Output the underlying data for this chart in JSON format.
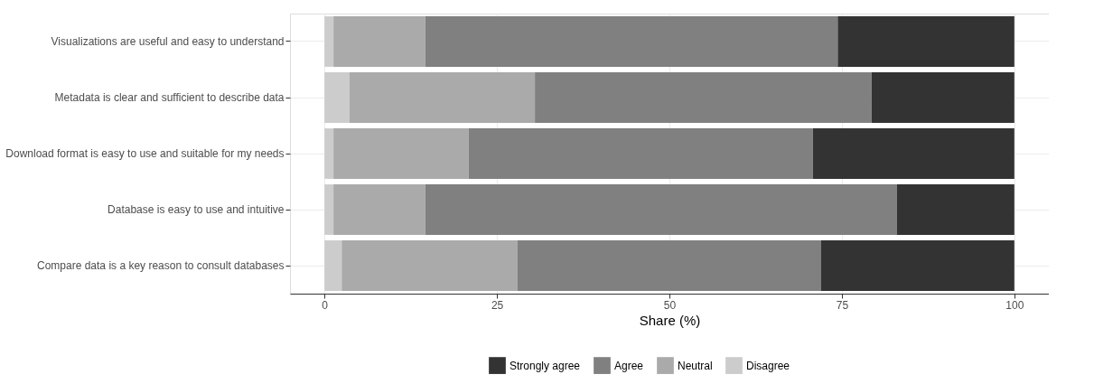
{
  "chart_data": {
    "type": "bar",
    "orientation": "horizontal",
    "stacked": true,
    "categories": [
      "Visualizations are  useful and easy to understand",
      "Metadata is clear and sufficient to describe data",
      "Download format is easy to use and suitable for my needs",
      "Database is easy to use and intuitive",
      "Compare data is a key reason to consult databases"
    ],
    "series": [
      {
        "name": "Disagree",
        "color": "#cccccc",
        "values": [
          1.3,
          3.6,
          1.3,
          1.3,
          2.5
        ]
      },
      {
        "name": "Neutral",
        "color": "#aaaaaa",
        "values": [
          13.3,
          26.9,
          19.6,
          13.3,
          25.5
        ]
      },
      {
        "name": "Agree",
        "color": "#808080",
        "values": [
          59.8,
          48.8,
          49.9,
          68.4,
          44.0
        ]
      },
      {
        "name": "Strongly agree",
        "color": "#333333",
        "values": [
          25.6,
          20.7,
          29.2,
          17.0,
          28.0
        ]
      }
    ],
    "xlabel": "Share (%)",
    "xlim": [
      -5,
      105
    ],
    "xticks": [
      0,
      25,
      50,
      75,
      100
    ],
    "grid": true,
    "legend": "bottom"
  }
}
